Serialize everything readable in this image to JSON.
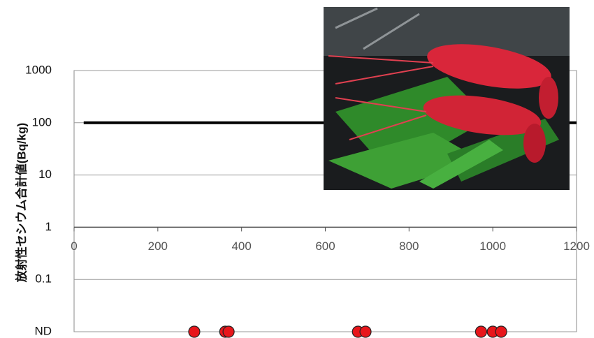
{
  "chart_data": {
    "type": "scatter",
    "ylabel": "放射性セシウム合計値(Bq/kg)",
    "xlim": [
      0,
      1200
    ],
    "xticks": [
      0,
      200,
      400,
      600,
      800,
      1000,
      1200
    ],
    "ylim": [
      0.01,
      1000
    ],
    "log_y": true,
    "grid": true,
    "yticks": [
      {
        "value": 0.01,
        "label": "ND"
      },
      0.1,
      1,
      10,
      100,
      1000
    ],
    "x_axis_at": 1,
    "series": [
      {
        "style": "line",
        "color": "#000000",
        "x": [
          23,
          1200
        ],
        "values": [
          100,
          100
        ]
      },
      {
        "style": "marker",
        "color": "#e8161b",
        "x": [
          287,
          361,
          369,
          678,
          696,
          972,
          1000,
          1020
        ],
        "values": [
          0.01,
          0.01,
          0.01,
          0.01,
          0.01,
          0.01,
          0.01,
          0.01
        ]
      }
    ]
  }
}
